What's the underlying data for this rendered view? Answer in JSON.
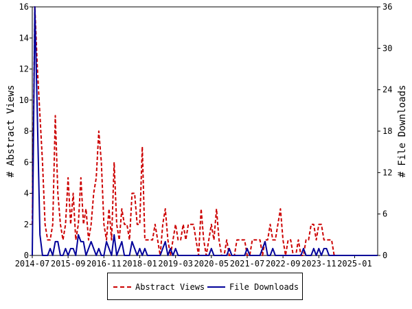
{
  "chart_data": {
    "type": "line",
    "x_ticks": [
      "2014-07",
      "2015-09",
      "2016-11",
      "2018-01",
      "2019-03",
      "2020-05",
      "2021-07",
      "2022-09",
      "2023-11",
      "2025-01"
    ],
    "y_left": {
      "label": "# Abstract Views",
      "range": [
        0,
        16
      ],
      "ticks": [
        "0",
        "2",
        "4",
        "6",
        "8",
        "10",
        "12",
        "14",
        "16"
      ]
    },
    "y_right": {
      "label": "# File Downloads",
      "range": [
        0,
        36
      ],
      "ticks": [
        "0",
        "6",
        "12",
        "18",
        "24",
        "30",
        "36"
      ]
    },
    "x_range": [
      "2014-07",
      "2025-10"
    ],
    "legend": {
      "placement": "bottom-center"
    },
    "series": [
      {
        "name": "Abstract Views",
        "axis": "left",
        "color": "#cc0000",
        "style": "dashed",
        "values": [
          [
            "2014-07",
            2
          ],
          [
            "2014-08",
            16
          ],
          [
            "2014-09",
            12
          ],
          [
            "2014-10",
            9
          ],
          [
            "2014-11",
            6
          ],
          [
            "2014-12",
            2
          ],
          [
            "2015-01",
            1
          ],
          [
            "2015-02",
            1
          ],
          [
            "2015-03",
            2
          ],
          [
            "2015-04",
            9
          ],
          [
            "2015-05",
            4
          ],
          [
            "2015-06",
            2
          ],
          [
            "2015-07",
            1
          ],
          [
            "2015-08",
            2
          ],
          [
            "2015-09",
            5
          ],
          [
            "2015-10",
            2
          ],
          [
            "2015-11",
            4
          ],
          [
            "2015-12",
            1
          ],
          [
            "2016-01",
            2
          ],
          [
            "2016-02",
            5
          ],
          [
            "2016-03",
            2
          ],
          [
            "2016-04",
            3
          ],
          [
            "2016-05",
            1
          ],
          [
            "2016-06",
            2
          ],
          [
            "2016-07",
            4
          ],
          [
            "2016-08",
            5
          ],
          [
            "2016-09",
            8
          ],
          [
            "2016-10",
            6
          ],
          [
            "2016-11",
            2
          ],
          [
            "2016-12",
            1
          ],
          [
            "2017-01",
            3
          ],
          [
            "2017-02",
            1
          ],
          [
            "2017-03",
            6
          ],
          [
            "2017-04",
            2
          ],
          [
            "2017-05",
            1
          ],
          [
            "2017-06",
            3
          ],
          [
            "2017-07",
            2
          ],
          [
            "2017-08",
            2
          ],
          [
            "2017-09",
            1
          ],
          [
            "2017-10",
            4
          ],
          [
            "2017-11",
            4
          ],
          [
            "2017-12",
            2
          ],
          [
            "2018-01",
            2
          ],
          [
            "2018-02",
            7
          ],
          [
            "2018-03",
            1
          ],
          [
            "2018-04",
            1
          ],
          [
            "2018-05",
            1
          ],
          [
            "2018-06",
            1
          ],
          [
            "2018-07",
            2
          ],
          [
            "2018-08",
            1
          ],
          [
            "2018-09",
            0
          ],
          [
            "2018-10",
            2
          ],
          [
            "2018-11",
            3
          ],
          [
            "2018-12",
            1
          ],
          [
            "2019-01",
            0
          ],
          [
            "2019-02",
            1
          ],
          [
            "2019-03",
            2
          ],
          [
            "2019-04",
            1
          ],
          [
            "2019-05",
            1
          ],
          [
            "2019-06",
            2
          ],
          [
            "2019-07",
            1
          ],
          [
            "2019-08",
            2
          ],
          [
            "2019-09",
            2
          ],
          [
            "2019-10",
            2
          ],
          [
            "2019-11",
            1
          ],
          [
            "2019-12",
            0
          ],
          [
            "2020-01",
            3
          ],
          [
            "2020-02",
            1
          ],
          [
            "2020-03",
            0
          ],
          [
            "2020-04",
            1
          ],
          [
            "2020-05",
            2
          ],
          [
            "2020-06",
            1
          ],
          [
            "2020-07",
            3
          ],
          [
            "2020-08",
            1
          ],
          [
            "2020-09",
            0
          ],
          [
            "2020-10",
            0
          ],
          [
            "2020-11",
            1
          ],
          [
            "2020-12",
            0
          ],
          [
            "2021-01",
            0
          ],
          [
            "2021-02",
            0
          ],
          [
            "2021-03",
            1
          ],
          [
            "2021-04",
            1
          ],
          [
            "2021-05",
            1
          ],
          [
            "2021-06",
            1
          ],
          [
            "2021-07",
            0
          ],
          [
            "2021-08",
            0
          ],
          [
            "2021-09",
            1
          ],
          [
            "2021-10",
            1
          ],
          [
            "2021-11",
            1
          ],
          [
            "2021-12",
            1
          ],
          [
            "2022-01",
            0
          ],
          [
            "2022-02",
            1
          ],
          [
            "2022-03",
            1
          ],
          [
            "2022-04",
            2
          ],
          [
            "2022-05",
            1
          ],
          [
            "2022-06",
            1
          ],
          [
            "2022-07",
            2
          ],
          [
            "2022-08",
            3
          ],
          [
            "2022-09",
            1
          ],
          [
            "2022-10",
            0
          ],
          [
            "2022-11",
            1
          ],
          [
            "2022-12",
            1
          ],
          [
            "2023-01",
            0
          ],
          [
            "2023-02",
            0
          ],
          [
            "2023-03",
            1
          ],
          [
            "2023-04",
            0
          ],
          [
            "2023-05",
            0
          ],
          [
            "2023-06",
            1
          ],
          [
            "2023-07",
            1
          ],
          [
            "2023-08",
            2
          ],
          [
            "2023-09",
            2
          ],
          [
            "2023-10",
            1
          ],
          [
            "2023-11",
            2
          ],
          [
            "2023-12",
            2
          ],
          [
            "2024-01",
            1
          ],
          [
            "2024-02",
            1
          ],
          [
            "2024-03",
            1
          ],
          [
            "2024-04",
            1
          ],
          [
            "2024-05",
            0
          ],
          [
            "2024-06",
            0
          ],
          [
            "2024-07",
            0
          ],
          [
            "2024-08",
            0
          ],
          [
            "2024-09",
            0
          ],
          [
            "2024-10",
            0
          ],
          [
            "2024-11",
            0
          ],
          [
            "2024-12",
            0
          ],
          [
            "2025-01",
            0
          ],
          [
            "2025-02",
            0
          ],
          [
            "2025-03",
            0
          ],
          [
            "2025-04",
            0
          ],
          [
            "2025-05",
            0
          ],
          [
            "2025-06",
            0
          ],
          [
            "2025-07",
            0
          ],
          [
            "2025-08",
            0
          ],
          [
            "2025-09",
            0
          ],
          [
            "2025-10",
            0
          ]
        ]
      },
      {
        "name": "File Downloads",
        "axis": "right",
        "color": "#000099",
        "style": "solid",
        "values": [
          [
            "2014-07",
            0
          ],
          [
            "2014-08",
            36
          ],
          [
            "2014-09",
            20
          ],
          [
            "2014-10",
            3
          ],
          [
            "2014-11",
            0
          ],
          [
            "2014-12",
            0
          ],
          [
            "2015-01",
            0
          ],
          [
            "2015-02",
            1
          ],
          [
            "2015-03",
            0
          ],
          [
            "2015-04",
            2
          ],
          [
            "2015-05",
            2
          ],
          [
            "2015-06",
            0
          ],
          [
            "2015-07",
            0
          ],
          [
            "2015-08",
            1
          ],
          [
            "2015-09",
            0
          ],
          [
            "2015-10",
            1
          ],
          [
            "2015-11",
            1
          ],
          [
            "2015-12",
            0
          ],
          [
            "2016-01",
            3
          ],
          [
            "2016-02",
            2
          ],
          [
            "2016-03",
            2
          ],
          [
            "2016-04",
            0
          ],
          [
            "2016-05",
            1
          ],
          [
            "2016-06",
            2
          ],
          [
            "2016-07",
            1
          ],
          [
            "2016-08",
            0
          ],
          [
            "2016-09",
            1
          ],
          [
            "2016-10",
            0
          ],
          [
            "2016-11",
            0
          ],
          [
            "2016-12",
            2
          ],
          [
            "2017-01",
            1
          ],
          [
            "2017-02",
            0
          ],
          [
            "2017-03",
            3
          ],
          [
            "2017-04",
            0
          ],
          [
            "2017-05",
            1
          ],
          [
            "2017-06",
            2
          ],
          [
            "2017-07",
            0
          ],
          [
            "2017-08",
            0
          ],
          [
            "2017-09",
            0
          ],
          [
            "2017-10",
            2
          ],
          [
            "2017-11",
            1
          ],
          [
            "2017-12",
            0
          ],
          [
            "2018-01",
            1
          ],
          [
            "2018-02",
            0
          ],
          [
            "2018-03",
            1
          ],
          [
            "2018-04",
            0
          ],
          [
            "2018-05",
            0
          ],
          [
            "2018-06",
            0
          ],
          [
            "2018-07",
            0
          ],
          [
            "2018-08",
            0
          ],
          [
            "2018-09",
            0
          ],
          [
            "2018-10",
            1
          ],
          [
            "2018-11",
            2
          ],
          [
            "2018-12",
            0
          ],
          [
            "2019-01",
            1
          ],
          [
            "2019-02",
            0
          ],
          [
            "2019-03",
            1
          ],
          [
            "2019-04",
            0
          ],
          [
            "2019-05",
            0
          ],
          [
            "2019-06",
            0
          ],
          [
            "2019-07",
            0
          ],
          [
            "2019-08",
            0
          ],
          [
            "2019-09",
            0
          ],
          [
            "2019-10",
            0
          ],
          [
            "2019-11",
            0
          ],
          [
            "2019-12",
            0
          ],
          [
            "2020-01",
            0
          ],
          [
            "2020-02",
            0
          ],
          [
            "2020-03",
            0
          ],
          [
            "2020-04",
            0
          ],
          [
            "2020-05",
            1
          ],
          [
            "2020-06",
            0
          ],
          [
            "2020-07",
            0
          ],
          [
            "2020-08",
            0
          ],
          [
            "2020-09",
            0
          ],
          [
            "2020-10",
            0
          ],
          [
            "2020-11",
            0
          ],
          [
            "2020-12",
            1
          ],
          [
            "2021-01",
            0
          ],
          [
            "2021-02",
            0
          ],
          [
            "2021-03",
            0
          ],
          [
            "2021-04",
            0
          ],
          [
            "2021-05",
            0
          ],
          [
            "2021-06",
            0
          ],
          [
            "2021-07",
            1
          ],
          [
            "2021-08",
            0
          ],
          [
            "2021-09",
            0
          ],
          [
            "2021-10",
            0
          ],
          [
            "2021-11",
            0
          ],
          [
            "2021-12",
            0
          ],
          [
            "2022-01",
            1
          ],
          [
            "2022-02",
            2
          ],
          [
            "2022-03",
            0
          ],
          [
            "2022-04",
            0
          ],
          [
            "2022-05",
            1
          ],
          [
            "2022-06",
            0
          ],
          [
            "2022-07",
            0
          ],
          [
            "2022-08",
            0
          ],
          [
            "2022-09",
            0
          ],
          [
            "2022-10",
            0
          ],
          [
            "2022-11",
            0
          ],
          [
            "2022-12",
            0
          ],
          [
            "2023-01",
            0
          ],
          [
            "2023-02",
            0
          ],
          [
            "2023-03",
            0
          ],
          [
            "2023-04",
            0
          ],
          [
            "2023-05",
            1
          ],
          [
            "2023-06",
            0
          ],
          [
            "2023-07",
            0
          ],
          [
            "2023-08",
            0
          ],
          [
            "2023-09",
            1
          ],
          [
            "2023-10",
            0
          ],
          [
            "2023-11",
            1
          ],
          [
            "2023-12",
            0
          ],
          [
            "2024-01",
            1
          ],
          [
            "2024-02",
            1
          ],
          [
            "2024-03",
            0
          ],
          [
            "2024-04",
            0
          ],
          [
            "2024-05",
            0
          ],
          [
            "2024-06",
            0
          ],
          [
            "2024-07",
            0
          ],
          [
            "2024-08",
            0
          ],
          [
            "2024-09",
            0
          ],
          [
            "2024-10",
            0
          ],
          [
            "2024-11",
            0
          ],
          [
            "2024-12",
            0
          ],
          [
            "2025-01",
            0
          ],
          [
            "2025-02",
            0
          ],
          [
            "2025-03",
            0
          ],
          [
            "2025-04",
            0
          ],
          [
            "2025-05",
            0
          ],
          [
            "2025-06",
            0
          ],
          [
            "2025-07",
            0
          ],
          [
            "2025-08",
            0
          ],
          [
            "2025-09",
            0
          ],
          [
            "2025-10",
            0
          ]
        ]
      }
    ]
  }
}
